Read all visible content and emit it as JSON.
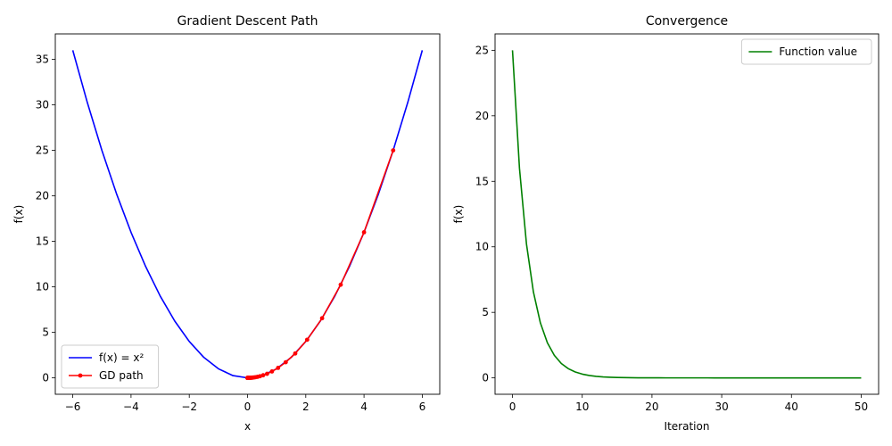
{
  "chart_data": [
    {
      "type": "line",
      "title": "Gradient Descent Path",
      "xlabel": "x",
      "ylabel": "f(x)",
      "xlim": [
        -6.6,
        6.6
      ],
      "ylim": [
        -1.8,
        37.8
      ],
      "xticks": [
        -6,
        -4,
        -2,
        0,
        2,
        4,
        6
      ],
      "yticks": [
        0,
        5,
        10,
        15,
        20,
        25,
        30,
        35
      ],
      "grid": false,
      "legend": "lower-left",
      "series": [
        {
          "name": "f(x) = x²",
          "color": "#0000ff",
          "marker": "none",
          "x": [
            -6,
            -5.5,
            -5,
            -4.5,
            -4,
            -3.5,
            -3,
            -2.5,
            -2,
            -1.5,
            -1,
            -0.5,
            0,
            0.5,
            1,
            1.5,
            2,
            2.5,
            3,
            3.5,
            4,
            4.5,
            5,
            5.5,
            6
          ],
          "y": [
            36,
            30.25,
            25,
            20.25,
            16,
            12.25,
            9,
            6.25,
            4,
            2.25,
            1,
            0.25,
            0,
            0.25,
            1,
            2.25,
            4,
            6.25,
            9,
            12.25,
            16,
            20.25,
            25,
            30.25,
            36
          ]
        },
        {
          "name": "GD path",
          "color": "#ff0000",
          "marker": "circle",
          "x": [
            5.0,
            4.0,
            3.2,
            2.56,
            2.048,
            1.638,
            1.311,
            1.049,
            0.839,
            0.671,
            0.537,
            0.429,
            0.344,
            0.275,
            0.22,
            0.176,
            0.141,
            0.113,
            0.09,
            0.072,
            0.058,
            0.046,
            0.037,
            0.03,
            0.024,
            0.019,
            0.015,
            0.012,
            0.01,
            0.008,
            0.006,
            0.005,
            0.004,
            0.003,
            0.0025,
            0.002,
            0.0016,
            0.0013,
            0.001,
            0.0008,
            0.0007,
            0.0005,
            0.0004,
            0.0003,
            0.00027,
            0.00021,
            0.00017,
            0.00014,
            0.00011,
            9e-05,
            7e-05
          ],
          "y": [
            25.0,
            16.0,
            10.24,
            6.554,
            4.194,
            2.684,
            1.718,
            1.1,
            0.704,
            0.45,
            0.288,
            0.184,
            0.118,
            0.076,
            0.048,
            0.031,
            0.02,
            0.013,
            0.008,
            0.005,
            0.003,
            0.002,
            0.0014,
            0.0009,
            0.0006,
            0.0004,
            0.0002,
            0.00015,
            0.0001,
            6e-05,
            4e-05,
            3e-05,
            2e-05,
            1e-05,
            1e-05,
            0,
            0,
            0,
            0,
            0,
            0,
            0,
            0,
            0,
            0,
            0,
            0,
            0,
            0,
            0,
            0
          ]
        }
      ]
    },
    {
      "type": "line",
      "title": "Convergence",
      "xlabel": "Iteration",
      "ylabel": "f(x)",
      "xlim": [
        -2.5,
        52.5
      ],
      "ylim": [
        -1.25,
        26.25
      ],
      "xticks": [
        0,
        10,
        20,
        30,
        40,
        50
      ],
      "yticks": [
        0,
        5,
        10,
        15,
        20,
        25
      ],
      "grid": false,
      "legend": "upper-right",
      "series": [
        {
          "name": "Function value",
          "color": "#008000",
          "marker": "none",
          "x": [
            0,
            1,
            2,
            3,
            4,
            5,
            6,
            7,
            8,
            9,
            10,
            11,
            12,
            13,
            14,
            15,
            16,
            17,
            18,
            19,
            20,
            21,
            22,
            23,
            24,
            25,
            26,
            27,
            28,
            29,
            30,
            31,
            32,
            33,
            34,
            35,
            36,
            37,
            38,
            39,
            40,
            41,
            42,
            43,
            44,
            45,
            46,
            47,
            48,
            49,
            50
          ],
          "y": [
            25.0,
            16.0,
            10.24,
            6.554,
            4.194,
            2.684,
            1.718,
            1.1,
            0.704,
            0.45,
            0.288,
            0.184,
            0.118,
            0.076,
            0.048,
            0.031,
            0.02,
            0.013,
            0.008,
            0.005,
            0.003,
            0.002,
            0.0014,
            0.0009,
            0.0006,
            0.0004,
            0.0002,
            0.00015,
            0.0001,
            6e-05,
            4e-05,
            3e-05,
            2e-05,
            1e-05,
            1e-05,
            0,
            0,
            0,
            0,
            0,
            0,
            0,
            0,
            0,
            0,
            0,
            0,
            0,
            0,
            0,
            0
          ]
        }
      ]
    }
  ]
}
